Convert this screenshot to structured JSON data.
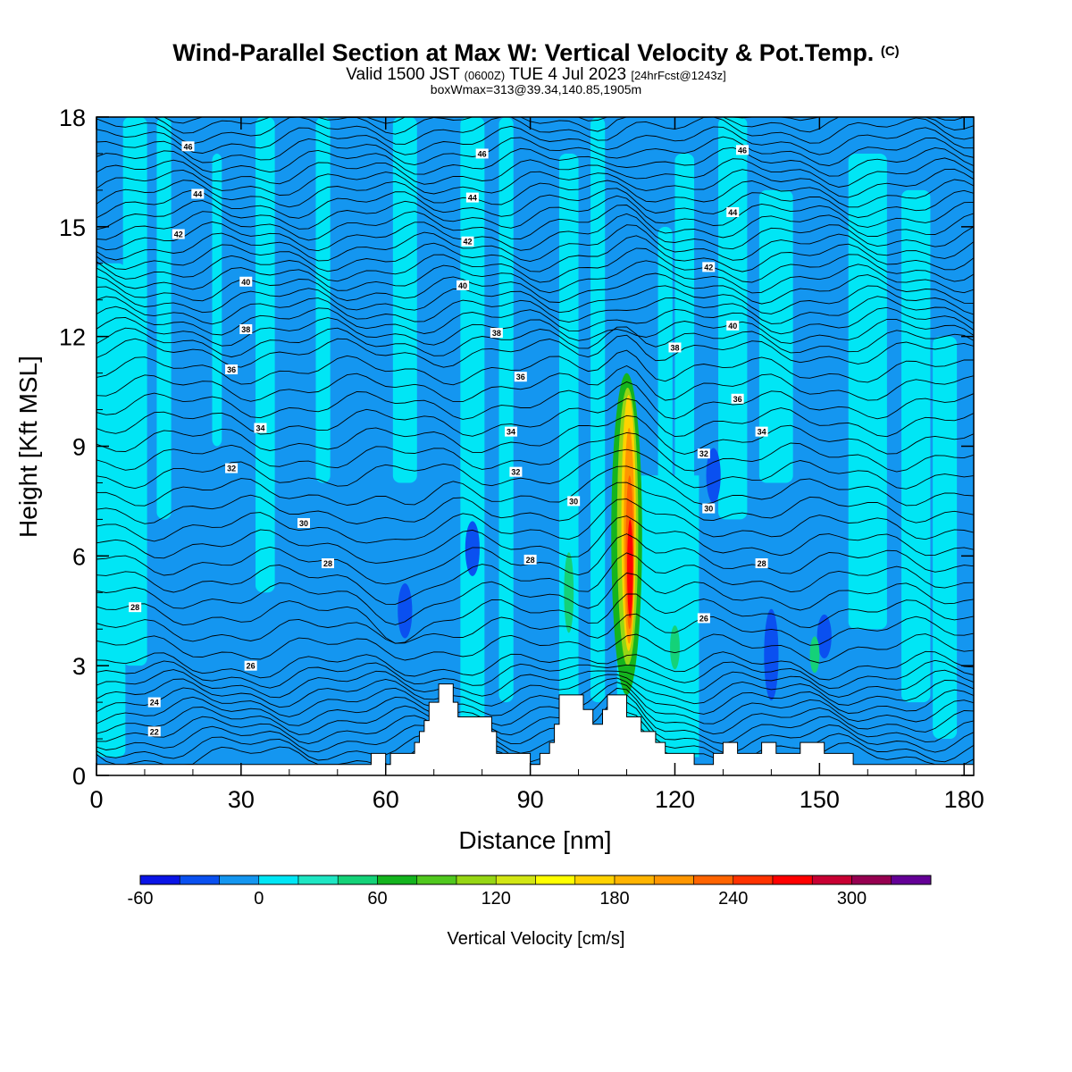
{
  "header": {
    "title": "Wind-Parallel Section at Max W: Vertical Velocity & Pot.Temp.",
    "title_mark": "(C)",
    "valid_a": "Valid 1500 JST",
    "valid_b": "(0600Z)",
    "valid_c": "TUE 4 Jul 2023",
    "valid_d": "[24hrFcst@1243z]",
    "box_line": "boxWmax=313@39.34,140.85,1905m"
  },
  "chart_data": {
    "type": "heatmap",
    "xlabel": "Distance [nm]",
    "ylabel": "Height [Kft MSL]",
    "xlim": [
      0,
      182
    ],
    "ylim": [
      0,
      18
    ],
    "x_ticks": [
      "0",
      "30",
      "60",
      "90",
      "120",
      "150",
      "180"
    ],
    "y_ticks": [
      "0",
      "3",
      "6",
      "9",
      "12",
      "15",
      "18"
    ],
    "colorbar": {
      "label": "Vertical Velocity [cm/s]",
      "tick_labels": [
        "-60",
        "0",
        "60",
        "120",
        "180",
        "240",
        "300"
      ],
      "boundaries": [
        -60,
        -40,
        -20,
        0,
        20,
        40,
        60,
        80,
        100,
        120,
        140,
        160,
        180,
        200,
        220,
        240,
        260,
        280,
        300,
        320,
        340
      ],
      "colors": [
        "#0a14e6",
        "#0a50f0",
        "#1496f0",
        "#00e6f5",
        "#1ee6c3",
        "#14d278",
        "#14b41e",
        "#50c81e",
        "#96d614",
        "#d2e614",
        "#ffff00",
        "#ffd200",
        "#ffb400",
        "#ff9600",
        "#ff6400",
        "#ff3200",
        "#ff0000",
        "#c80032",
        "#960050",
        "#640096"
      ]
    },
    "terrain": {
      "unit": "kft MSL",
      "points": [
        [
          0,
          0.3
        ],
        [
          57,
          0.3
        ],
        [
          57,
          0.6
        ],
        [
          60,
          0.6
        ],
        [
          60,
          0.3
        ],
        [
          61,
          0.3
        ],
        [
          61,
          0.6
        ],
        [
          66,
          0.6
        ],
        [
          66,
          0.9
        ],
        [
          67,
          0.9
        ],
        [
          67,
          1.2
        ],
        [
          68,
          1.2
        ],
        [
          68,
          1.5
        ],
        [
          69,
          1.5
        ],
        [
          69,
          2.0
        ],
        [
          71,
          2.0
        ],
        [
          71,
          2.5
        ],
        [
          74,
          2.5
        ],
        [
          74,
          2.0
        ],
        [
          75,
          2.0
        ],
        [
          75,
          1.6
        ],
        [
          82,
          1.6
        ],
        [
          82,
          1.2
        ],
        [
          83,
          1.2
        ],
        [
          83,
          0.6
        ],
        [
          90,
          0.6
        ],
        [
          90,
          0.3
        ],
        [
          92,
          0.3
        ],
        [
          92,
          0.6
        ],
        [
          94,
          0.6
        ],
        [
          94,
          0.9
        ],
        [
          95,
          0.9
        ],
        [
          95,
          1.4
        ],
        [
          96,
          1.4
        ],
        [
          96,
          2.2
        ],
        [
          101,
          2.2
        ],
        [
          101,
          1.8
        ],
        [
          103,
          1.8
        ],
        [
          103,
          1.4
        ],
        [
          105,
          1.4
        ],
        [
          105,
          1.8
        ],
        [
          106,
          1.8
        ],
        [
          106,
          2.2
        ],
        [
          110,
          2.2
        ],
        [
          110,
          1.6
        ],
        [
          113,
          1.6
        ],
        [
          113,
          1.2
        ],
        [
          116,
          1.2
        ],
        [
          116,
          0.9
        ],
        [
          118,
          0.9
        ],
        [
          118,
          0.6
        ],
        [
          124,
          0.6
        ],
        [
          124,
          0.3
        ],
        [
          128,
          0.3
        ],
        [
          128,
          0.6
        ],
        [
          130,
          0.6
        ],
        [
          130,
          0.9
        ],
        [
          133,
          0.9
        ],
        [
          133,
          0.6
        ],
        [
          138,
          0.6
        ],
        [
          138,
          0.9
        ],
        [
          141,
          0.9
        ],
        [
          141,
          0.6
        ],
        [
          146,
          0.6
        ],
        [
          146,
          0.9
        ],
        [
          151,
          0.9
        ],
        [
          151,
          0.6
        ],
        [
          157,
          0.6
        ],
        [
          157,
          0.3
        ],
        [
          182,
          0.3
        ]
      ]
    },
    "contour_labels": [
      {
        "text": "46",
        "x": 19,
        "y": 17.2
      },
      {
        "text": "44",
        "x": 21,
        "y": 15.9
      },
      {
        "text": "42",
        "x": 17,
        "y": 14.8
      },
      {
        "text": "40",
        "x": 31,
        "y": 13.5
      },
      {
        "text": "38",
        "x": 31,
        "y": 12.2
      },
      {
        "text": "36",
        "x": 28,
        "y": 11.1
      },
      {
        "text": "34",
        "x": 34,
        "y": 9.5
      },
      {
        "text": "32",
        "x": 28,
        "y": 8.4
      },
      {
        "text": "30",
        "x": 43,
        "y": 6.9
      },
      {
        "text": "28",
        "x": 48,
        "y": 5.8
      },
      {
        "text": "28",
        "x": 8,
        "y": 4.6
      },
      {
        "text": "26",
        "x": 32,
        "y": 3.0
      },
      {
        "text": "24",
        "x": 12,
        "y": 2.0
      },
      {
        "text": "22",
        "x": 12,
        "y": 1.2
      },
      {
        "text": "46",
        "x": 80,
        "y": 17.0
      },
      {
        "text": "44",
        "x": 78,
        "y": 15.8
      },
      {
        "text": "42",
        "x": 77,
        "y": 14.6
      },
      {
        "text": "40",
        "x": 76,
        "y": 13.4
      },
      {
        "text": "38",
        "x": 83,
        "y": 12.1
      },
      {
        "text": "36",
        "x": 88,
        "y": 10.9
      },
      {
        "text": "34",
        "x": 86,
        "y": 9.4
      },
      {
        "text": "32",
        "x": 87,
        "y": 8.3
      },
      {
        "text": "30",
        "x": 99,
        "y": 7.5
      },
      {
        "text": "28",
        "x": 90,
        "y": 5.9
      },
      {
        "text": "46",
        "x": 134,
        "y": 17.1
      },
      {
        "text": "44",
        "x": 132,
        "y": 15.4
      },
      {
        "text": "42",
        "x": 127,
        "y": 13.9
      },
      {
        "text": "40",
        "x": 132,
        "y": 12.3
      },
      {
        "text": "38",
        "x": 120,
        "y": 11.7
      },
      {
        "text": "36",
        "x": 133,
        "y": 10.3
      },
      {
        "text": "34",
        "x": 138,
        "y": 9.4
      },
      {
        "text": "32",
        "x": 126,
        "y": 8.8
      },
      {
        "text": "30",
        "x": 127,
        "y": 7.3
      },
      {
        "text": "28",
        "x": 138,
        "y": 5.8
      },
      {
        "text": "26",
        "x": 126,
        "y": 4.3
      }
    ]
  }
}
